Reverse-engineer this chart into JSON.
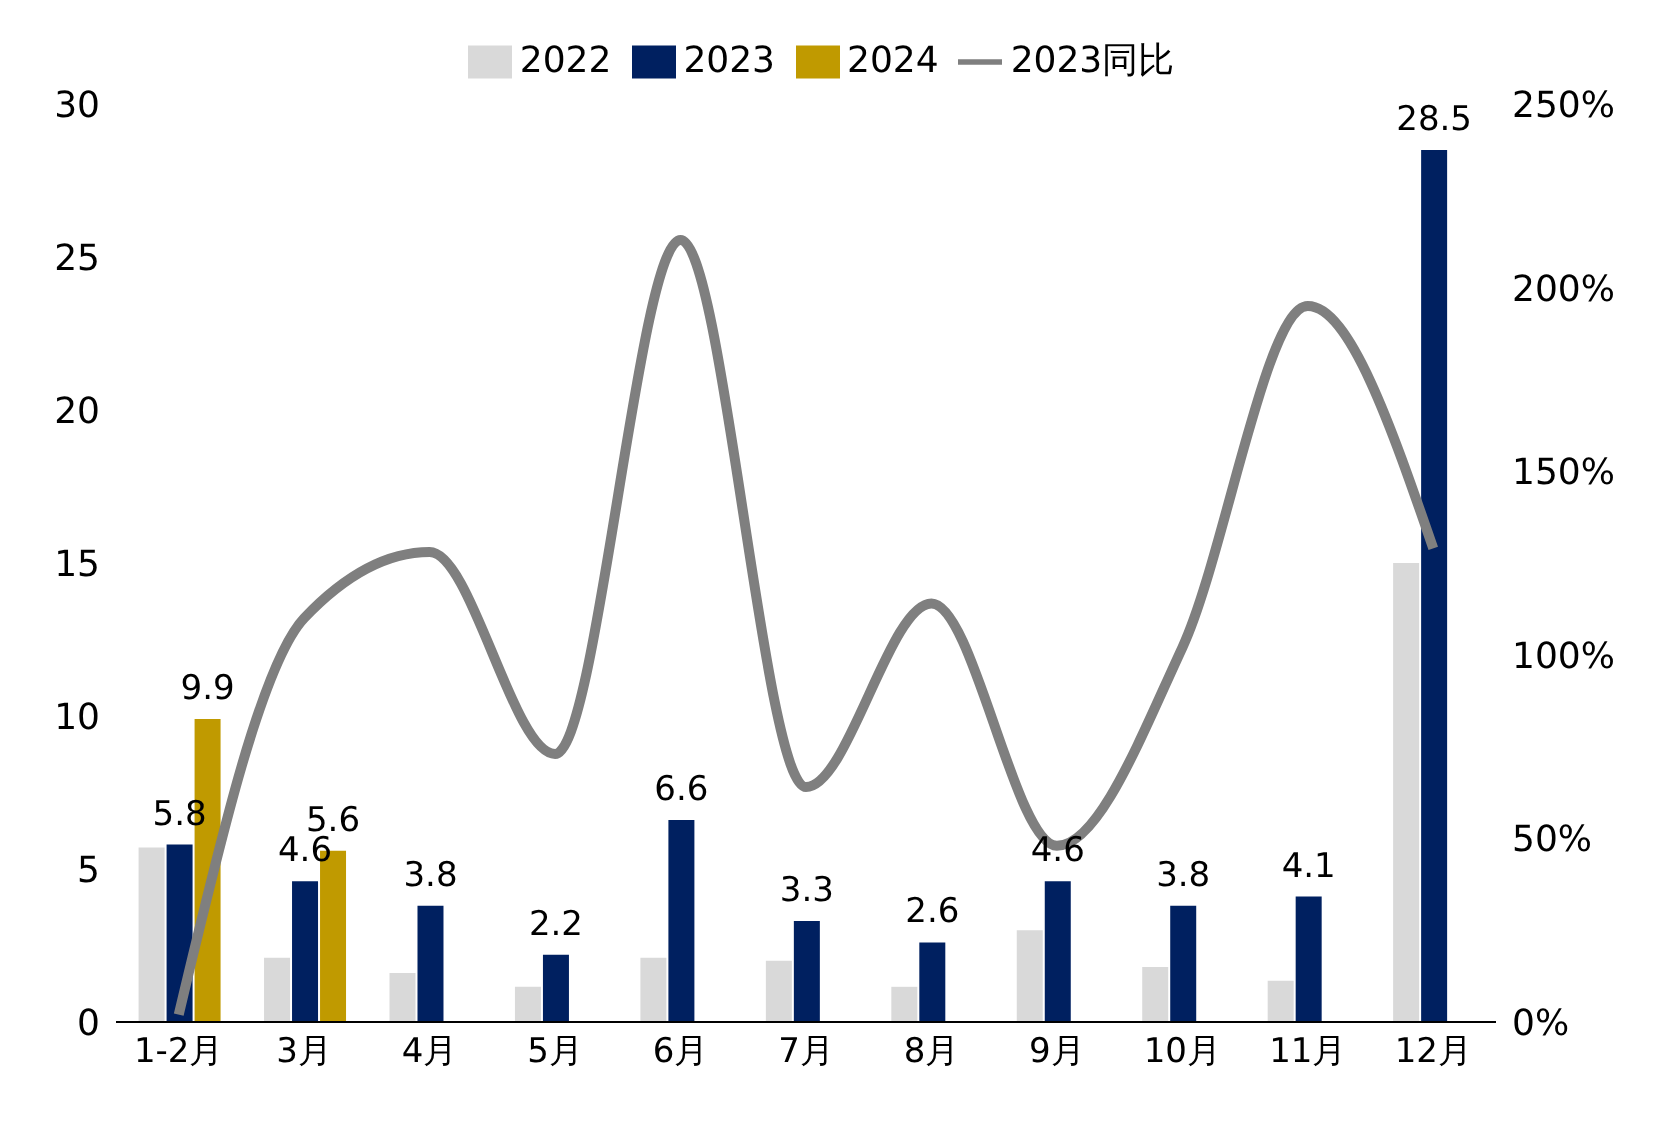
{
  "chart_data": {
    "type": "bar",
    "categories": [
      "1-2月",
      "3月",
      "4月",
      "5月",
      "6月",
      "7月",
      "8月",
      "9月",
      "10月",
      "11月",
      "12月"
    ],
    "series": [
      {
        "name": "2022",
        "color": "#d9d9d9",
        "values": [
          5.7,
          2.1,
          1.6,
          1.15,
          2.1,
          2.0,
          1.15,
          3.0,
          1.8,
          1.35,
          15.0
        ]
      },
      {
        "name": "2023",
        "color": "#002060",
        "values": [
          5.8,
          4.6,
          3.8,
          2.2,
          6.6,
          3.3,
          2.6,
          4.6,
          3.8,
          4.1,
          28.5
        ],
        "value_labels": [
          "5.8",
          "4.6",
          "3.8",
          "2.2",
          "6.6",
          "3.3",
          "2.6",
          "4.6",
          "3.8",
          "4.1",
          "28.5"
        ]
      },
      {
        "name": "2024",
        "color": "#c09a00",
        "values": [
          9.9,
          5.6,
          null,
          null,
          null,
          null,
          null,
          null,
          null,
          null,
          null
        ],
        "value_labels": [
          "9.9",
          "5.6",
          null,
          null,
          null,
          null,
          null,
          null,
          null,
          null,
          null
        ]
      },
      {
        "name": "2023同比",
        "type": "line",
        "axis": "y2",
        "color": "#7f7f7f",
        "values": [
          2,
          110,
          128,
          73,
          213,
          64,
          114,
          48,
          102,
          195,
          129
        ]
      }
    ],
    "ylim": [
      0,
      30
    ],
    "yticks": [
      0,
      5,
      10,
      15,
      20,
      25,
      30
    ],
    "y2lim": [
      0,
      250
    ],
    "y2ticks": [
      {
        "value": 0,
        "label": "0%"
      },
      {
        "value": 50,
        "label": "50%"
      },
      {
        "value": 100,
        "label": "100%"
      },
      {
        "value": 150,
        "label": "150%"
      },
      {
        "value": 200,
        "label": "200%"
      },
      {
        "value": 250,
        "label": "250%"
      }
    ],
    "legend": "top",
    "marker": "none"
  }
}
